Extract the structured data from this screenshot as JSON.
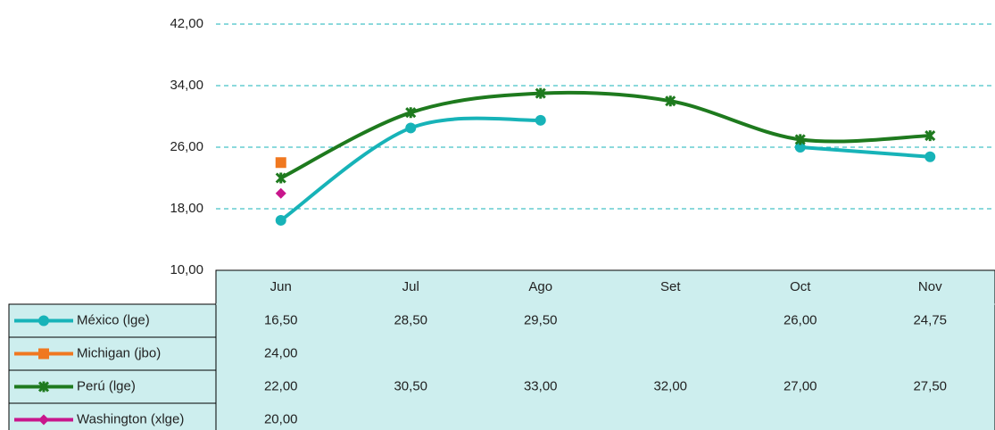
{
  "chart_data": {
    "type": "line",
    "categories": [
      "Jun",
      "Jul",
      "Ago",
      "Set",
      "Oct",
      "Nov"
    ],
    "series": [
      {
        "name": "México (lge)",
        "color": "#17b3b8",
        "marker": "circle",
        "values": [
          16.5,
          28.5,
          29.5,
          null,
          26,
          24.75
        ],
        "value_labels": [
          "16,50",
          "28,50",
          "29,50",
          null,
          "26,00",
          "24,75"
        ]
      },
      {
        "name": "Michigan (jbo)",
        "color": "#f07820",
        "marker": "square",
        "values": [
          24,
          null,
          null,
          null,
          null,
          null
        ],
        "value_labels": [
          "24,00",
          null,
          null,
          null,
          null,
          null
        ]
      },
      {
        "name": "Perú (lge)",
        "color": "#1e7a1e",
        "marker": "star",
        "values": [
          22,
          30.5,
          33,
          32,
          27,
          27.5
        ],
        "value_labels": [
          "22,00",
          "30,50",
          "33,00",
          "32,00",
          "27,00",
          "27,50"
        ]
      },
      {
        "name": "Washington (xlge)",
        "color": "#c8168c",
        "marker": "diamond",
        "values": [
          20,
          null,
          null,
          null,
          null,
          null
        ],
        "value_labels": [
          "20,00",
          null,
          null,
          null,
          null,
          null
        ]
      }
    ],
    "ylim": [
      10,
      42
    ],
    "yticks": [
      {
        "value": 10,
        "label": "10,00"
      },
      {
        "value": 18,
        "label": "18,00"
      },
      {
        "value": 26,
        "label": "26,00"
      },
      {
        "value": 34,
        "label": "34,00"
      },
      {
        "value": 42,
        "label": "42,00"
      }
    ],
    "grid": true,
    "smooth": true,
    "data_table": true
  }
}
